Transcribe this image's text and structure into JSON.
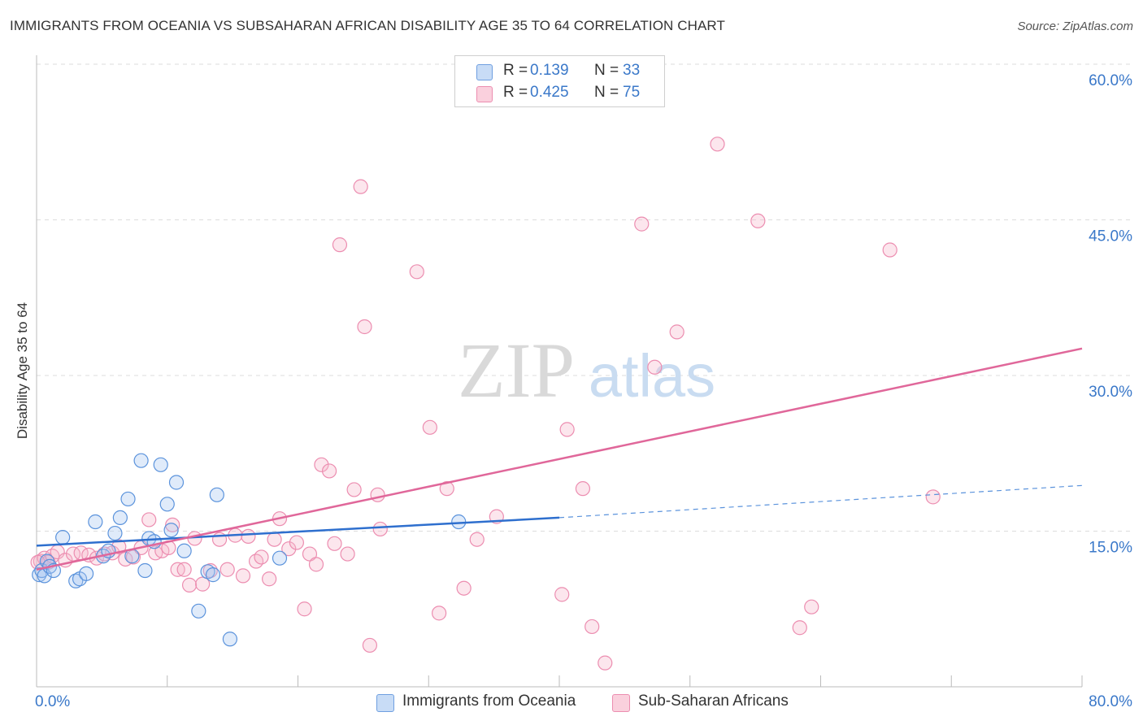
{
  "title": "IMMIGRANTS FROM OCEANIA VS SUBSAHARAN AFRICAN DISABILITY AGE 35 TO 64 CORRELATION CHART",
  "source": "Source: ZipAtlas.com",
  "watermark": {
    "zip": "ZIP",
    "atlas": "atlas"
  },
  "legend": {
    "r_label": "R =",
    "n_label": "N =",
    "rows": [
      {
        "r": "0.139",
        "n": "33",
        "color": "#a7c7f0"
      },
      {
        "r": "0.425",
        "n": "75",
        "color": "#f6b8cb"
      }
    ]
  },
  "bottom_legend": [
    {
      "label": "Immigrants from Oceania",
      "color": "#a7c7f0"
    },
    {
      "label": "Sub-Saharan Africans",
      "color": "#f6b8cb"
    }
  ],
  "colors": {
    "blue": "#5b93dc",
    "blue_line": "#2e6fce",
    "pink": "#ec8db0",
    "pink_line": "#e0679a",
    "tick_text": "#3a78c9",
    "grid": "#dddddd"
  },
  "chart_data": {
    "type": "scatter",
    "xlabel": "",
    "ylabel": "Disability Age 35 to 64",
    "xlim": [
      0,
      80
    ],
    "ylim": [
      0,
      60
    ],
    "x_tick_labels": [
      "0.0%",
      "80.0%"
    ],
    "y_ticks": [
      15,
      30,
      45,
      60
    ],
    "y_tick_labels": [
      "15.0%",
      "30.0%",
      "45.0%",
      "60.0%"
    ],
    "series": [
      {
        "name": "Immigrants from Oceania",
        "r": 0.139,
        "n": 33,
        "trend": {
          "x0": 0,
          "y0": 13.6,
          "x1": 40,
          "y1": 16.3,
          "dash_to_x": 80,
          "dash_to_y": 19.4
        },
        "points": [
          [
            0.2,
            10.8
          ],
          [
            0.4,
            11.2
          ],
          [
            0.6,
            10.7
          ],
          [
            0.8,
            12.1
          ],
          [
            1.0,
            11.6
          ],
          [
            1.3,
            11.2
          ],
          [
            2.0,
            14.4
          ],
          [
            3.0,
            10.2
          ],
          [
            3.3,
            10.4
          ],
          [
            3.8,
            10.9
          ],
          [
            4.5,
            15.9
          ],
          [
            5.1,
            12.6
          ],
          [
            5.5,
            13.1
          ],
          [
            6.0,
            14.8
          ],
          [
            6.4,
            16.3
          ],
          [
            7.0,
            18.1
          ],
          [
            7.3,
            12.6
          ],
          [
            8.0,
            21.8
          ],
          [
            8.3,
            11.2
          ],
          [
            8.6,
            14.3
          ],
          [
            9.0,
            14.0
          ],
          [
            9.5,
            21.4
          ],
          [
            10.0,
            17.6
          ],
          [
            10.3,
            15.1
          ],
          [
            10.7,
            19.7
          ],
          [
            11.3,
            13.1
          ],
          [
            12.4,
            7.3
          ],
          [
            13.1,
            11.1
          ],
          [
            13.5,
            10.8
          ],
          [
            13.8,
            18.5
          ],
          [
            14.8,
            4.6
          ],
          [
            18.6,
            12.4
          ],
          [
            32.3,
            15.9
          ]
        ]
      },
      {
        "name": "Sub-Saharan Africans",
        "r": 0.425,
        "n": 75,
        "trend": {
          "x0": 0,
          "y0": 11.3,
          "x1": 80,
          "y1": 32.6
        },
        "points": [
          [
            0.3,
            12.1
          ],
          [
            0.6,
            12.4
          ],
          [
            0.9,
            12.0
          ],
          [
            1.2,
            12.6
          ],
          [
            1.6,
            13.0
          ],
          [
            2.2,
            12.2
          ],
          [
            2.8,
            12.8
          ],
          [
            3.4,
            12.9
          ],
          [
            4.0,
            12.7
          ],
          [
            4.6,
            12.4
          ],
          [
            5.2,
            12.8
          ],
          [
            5.8,
            12.9
          ],
          [
            6.3,
            13.5
          ],
          [
            6.8,
            12.3
          ],
          [
            7.4,
            12.5
          ],
          [
            8.0,
            13.4
          ],
          [
            8.6,
            16.1
          ],
          [
            9.1,
            12.9
          ],
          [
            9.6,
            13.1
          ],
          [
            10.1,
            13.4
          ],
          [
            10.4,
            15.6
          ],
          [
            10.8,
            11.3
          ],
          [
            11.3,
            11.3
          ],
          [
            11.7,
            9.8
          ],
          [
            12.1,
            14.3
          ],
          [
            12.7,
            9.9
          ],
          [
            13.3,
            11.2
          ],
          [
            14.0,
            14.2
          ],
          [
            14.6,
            11.3
          ],
          [
            15.2,
            14.6
          ],
          [
            15.8,
            10.7
          ],
          [
            16.2,
            14.5
          ],
          [
            16.8,
            12.1
          ],
          [
            17.2,
            12.5
          ],
          [
            17.8,
            10.4
          ],
          [
            18.2,
            14.2
          ],
          [
            18.6,
            16.2
          ],
          [
            19.3,
            13.3
          ],
          [
            19.9,
            13.9
          ],
          [
            20.5,
            7.5
          ],
          [
            20.9,
            12.8
          ],
          [
            21.4,
            11.8
          ],
          [
            21.8,
            21.4
          ],
          [
            22.4,
            20.8
          ],
          [
            22.8,
            13.8
          ],
          [
            23.2,
            42.6
          ],
          [
            23.8,
            12.8
          ],
          [
            24.3,
            19.0
          ],
          [
            24.8,
            48.2
          ],
          [
            25.1,
            34.7
          ],
          [
            25.5,
            4.0
          ],
          [
            26.1,
            18.5
          ],
          [
            26.3,
            15.2
          ],
          [
            29.1,
            40.0
          ],
          [
            30.1,
            25.0
          ],
          [
            30.8,
            7.1
          ],
          [
            31.4,
            19.1
          ],
          [
            32.7,
            9.5
          ],
          [
            33.7,
            14.2
          ],
          [
            35.2,
            16.4
          ],
          [
            40.2,
            8.9
          ],
          [
            40.6,
            24.8
          ],
          [
            41.8,
            19.1
          ],
          [
            42.5,
            5.8
          ],
          [
            43.5,
            2.3
          ],
          [
            46.3,
            44.6
          ],
          [
            47.3,
            30.8
          ],
          [
            49.0,
            34.2
          ],
          [
            52.1,
            52.3
          ],
          [
            55.2,
            44.9
          ],
          [
            58.4,
            5.7
          ],
          [
            59.3,
            7.7
          ],
          [
            65.3,
            42.1
          ],
          [
            68.6,
            18.3
          ],
          [
            0.1,
            12.0
          ]
        ]
      }
    ]
  }
}
